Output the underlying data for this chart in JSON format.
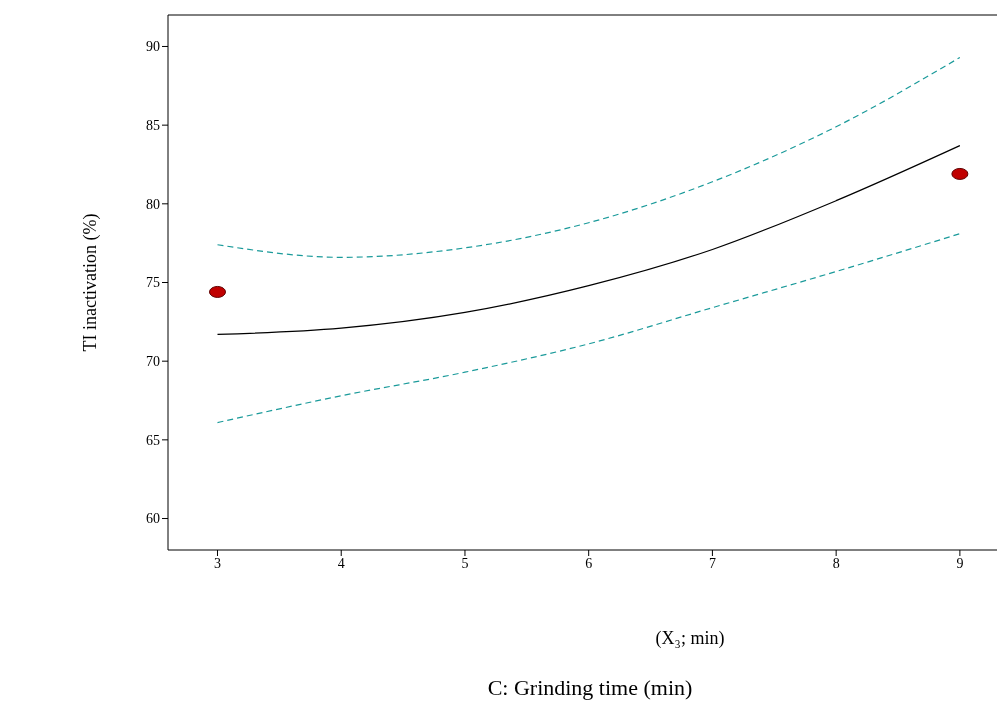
{
  "chart_data": {
    "type": "line",
    "xlabel": "C: Grinding time (min)",
    "ylabel": "TI inactivation (%)",
    "annotations": [
      "(X₃; min)"
    ],
    "x": [
      3,
      4,
      5,
      6,
      7,
      8,
      9
    ],
    "xlim": [
      2.6,
      9.3
    ],
    "xticks": [
      3,
      4,
      5,
      6,
      7,
      8,
      9
    ],
    "ylim": [
      58,
      92
    ],
    "yticks": [
      60,
      65,
      70,
      75,
      80,
      85,
      90
    ],
    "grid": false,
    "series": [
      {
        "color": "#000000",
        "line_style": "solid",
        "marker": "none",
        "values": [
          71.7,
          72.1,
          73.1,
          74.8,
          77.1,
          80.2,
          83.7
        ]
      },
      {
        "color": "#1a9a9a",
        "line_style": "dashed",
        "marker": "none",
        "values": [
          77.4,
          76.6,
          77.2,
          78.8,
          81.4,
          84.9,
          89.3
        ]
      },
      {
        "color": "#1a9a9a",
        "line_style": "dashed",
        "marker": "none",
        "values": [
          66.1,
          67.8,
          69.3,
          71.1,
          73.4,
          75.7,
          78.1
        ]
      },
      {
        "type": "scatter",
        "color": "#c00000",
        "marker": "circle",
        "x": [
          3,
          9
        ],
        "values": [
          74.4,
          81.9
        ]
      }
    ]
  }
}
